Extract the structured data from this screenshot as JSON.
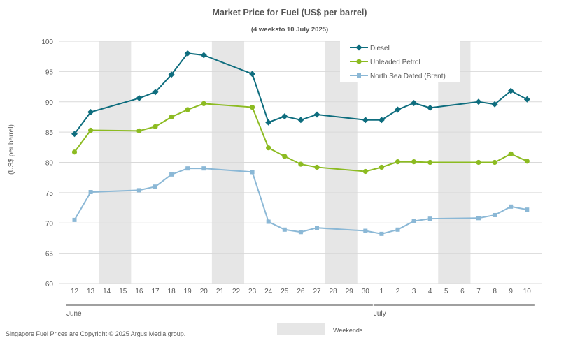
{
  "chart_data": {
    "type": "line",
    "title": "Market Price for Fuel (US$ per barrel)",
    "subtitle": "(4 weeksto 10 July 2025)",
    "ylabel": "(US$ per barrel)",
    "ylim": [
      60,
      100
    ],
    "yticks": [
      60,
      65,
      70,
      75,
      80,
      85,
      90,
      95,
      100
    ],
    "grid": true,
    "legend_position": "top-right",
    "x_labels": [
      "12",
      "13",
      "14",
      "15",
      "16",
      "17",
      "18",
      "19",
      "20",
      "21",
      "22",
      "23",
      "24",
      "25",
      "26",
      "27",
      "28",
      "29",
      "30",
      "1",
      "2",
      "3",
      "4",
      "5",
      "6",
      "7",
      "8",
      "9",
      "10"
    ],
    "months": [
      {
        "label": "June",
        "start_index": 0,
        "end_index": 18
      },
      {
        "label": "July",
        "start_index": 19,
        "end_index": 28
      }
    ],
    "weekends": [
      [
        2,
        3
      ],
      [
        9,
        10
      ],
      [
        16,
        17
      ],
      [
        23,
        24
      ]
    ],
    "weekend_label": "Weekends",
    "series": [
      {
        "name": "Diesel",
        "color": "#0E6D7E",
        "marker": "diamond",
        "values": [
          84.7,
          88.3,
          null,
          null,
          90.6,
          91.6,
          94.5,
          98.0,
          97.7,
          null,
          null,
          94.6,
          86.6,
          87.6,
          87.0,
          87.9,
          null,
          null,
          87.0,
          87.0,
          88.7,
          89.8,
          89.0,
          null,
          null,
          90.0,
          89.6,
          91.8,
          90.4
        ]
      },
      {
        "name": "Unleaded Petrol",
        "color": "#8CBB21",
        "marker": "circle",
        "values": [
          81.7,
          85.3,
          null,
          null,
          85.2,
          85.9,
          87.5,
          88.7,
          89.7,
          null,
          null,
          89.1,
          82.4,
          81.0,
          79.7,
          79.2,
          null,
          null,
          78.5,
          79.2,
          80.1,
          80.1,
          80.0,
          null,
          null,
          80.0,
          80.0,
          81.4,
          80.2
        ]
      },
      {
        "name": "North Sea Dated (Brent)",
        "color": "#8BB8D6",
        "marker": "square",
        "values": [
          70.5,
          75.1,
          null,
          null,
          75.4,
          76.0,
          78.0,
          79.0,
          79.0,
          null,
          null,
          78.4,
          70.2,
          68.9,
          68.5,
          69.2,
          null,
          null,
          68.7,
          68.2,
          68.9,
          70.3,
          70.7,
          null,
          null,
          70.8,
          71.3,
          72.7,
          72.2
        ]
      }
    ]
  },
  "footer": {
    "copyright": "Singapore Fuel Prices are Copyright © 2025 Argus Media group."
  }
}
